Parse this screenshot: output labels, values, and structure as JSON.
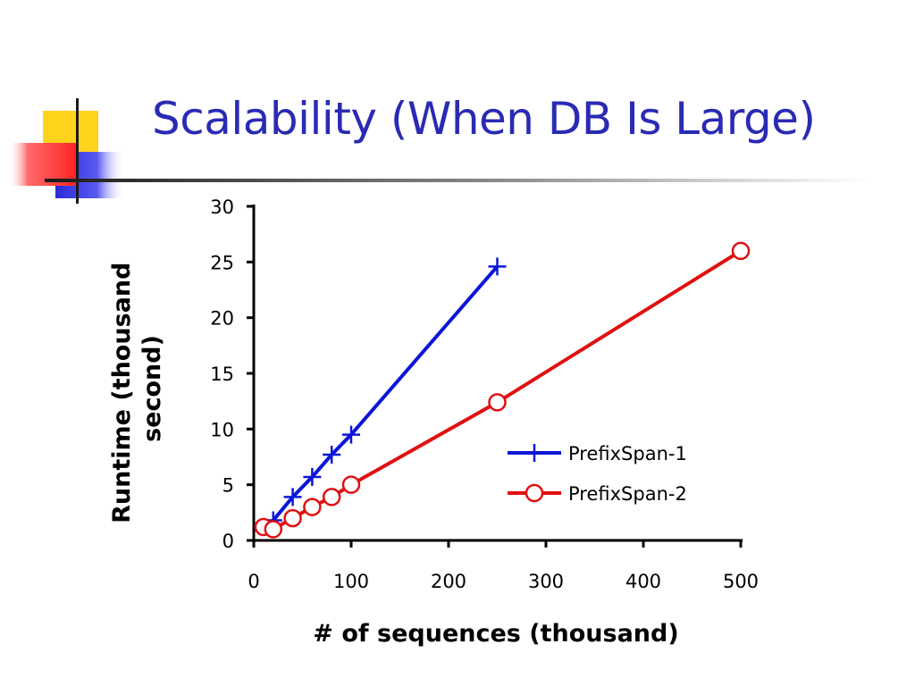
{
  "slide": {
    "title": "Scalability (When DB Is Large)"
  },
  "colors": {
    "title": "#2a2ab4",
    "deco_yellow": "#ffd21c",
    "deco_red": "#ff3a3a",
    "deco_blue": "#3030e0"
  },
  "chart_data": {
    "type": "line",
    "xlabel": "# of sequences (thousand)",
    "ylabel_lines": [
      "Runtime (thousand",
      "second)"
    ],
    "xlim": [
      0,
      500
    ],
    "ylim": [
      0,
      30
    ],
    "x_ticks": [
      0,
      100,
      200,
      300,
      400,
      500
    ],
    "y_ticks": [
      0,
      5,
      10,
      15,
      20,
      25,
      30
    ],
    "grid": false,
    "legend_position": "right-middle",
    "series": [
      {
        "name": "PrefixSpan-1",
        "color": "#0b16d8",
        "marker": "plus",
        "x": [
          10,
          20,
          40,
          60,
          80,
          100,
          250
        ],
        "y": [
          1.2,
          1.8,
          3.9,
          5.7,
          7.7,
          9.5,
          24.6
        ]
      },
      {
        "name": "PrefixSpan-2",
        "color": "#e01010",
        "marker": "circle",
        "x": [
          10,
          20,
          40,
          60,
          80,
          100,
          250,
          500
        ],
        "y": [
          1.2,
          1.0,
          2.0,
          3.0,
          3.9,
          5.0,
          12.4,
          26.0
        ]
      }
    ]
  }
}
